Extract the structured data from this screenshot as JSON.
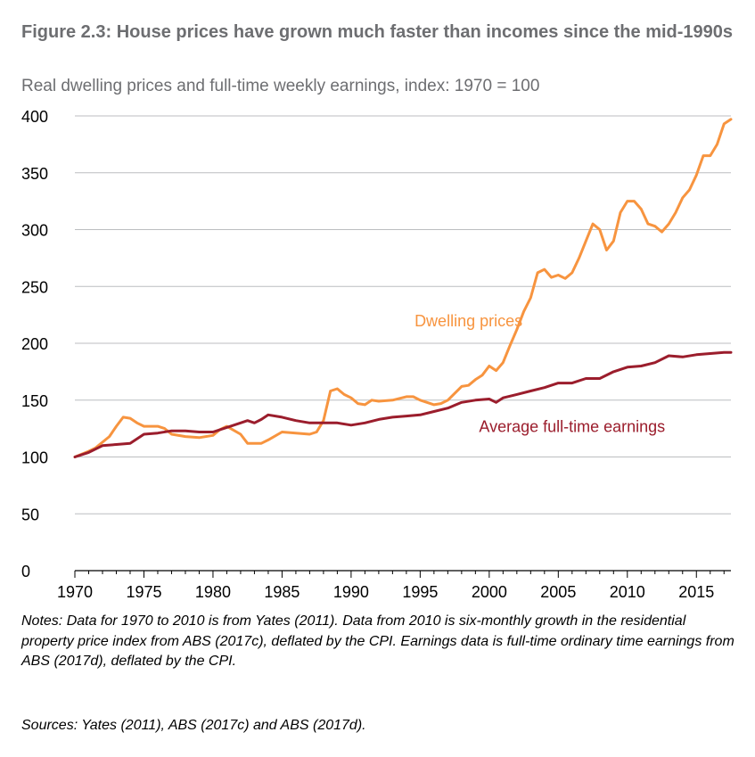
{
  "figure": {
    "title": "Figure 2.3: House prices have grown much faster than incomes since the mid-1990s",
    "subtitle": "Real dwelling prices and full-time weekly earnings, index: 1970 = 100",
    "notes": "Notes: Data for 1970 to 2010 is from Yates (2011). Data from 2010 is six-monthly growth in the residential property price index from ABS (2017c), deflated by the CPI. Earnings data is full-time ordinary time earnings from ABS (2017d), deflated by the CPI.",
    "sources": "Sources: Yates (2011), ABS (2017c) and ABS (2017d)."
  },
  "chart_data": {
    "type": "line",
    "title": "Figure 2.3: House prices have grown much faster than incomes since the mid-1990s",
    "subtitle": "Real dwelling prices and full-time weekly earnings, index: 1970 = 100",
    "xlabel": "",
    "ylabel": "",
    "xlim": [
      1970,
      2017.5
    ],
    "ylim": [
      0,
      400
    ],
    "x_ticks": [
      1970,
      1975,
      1980,
      1985,
      1990,
      1995,
      2000,
      2005,
      2010,
      2015
    ],
    "y_ticks": [
      0,
      50,
      100,
      150,
      200,
      250,
      300,
      350,
      400
    ],
    "grid": "horizontal",
    "legend": "none",
    "series": [
      {
        "name": "Dwelling prices",
        "color": "#f7943f",
        "points": [
          [
            1970,
            100
          ],
          [
            1971,
            105
          ],
          [
            1971.5,
            108
          ],
          [
            1972,
            113
          ],
          [
            1972.5,
            118
          ],
          [
            1973,
            127
          ],
          [
            1973.5,
            135
          ],
          [
            1974,
            134
          ],
          [
            1974.5,
            130
          ],
          [
            1975,
            127
          ],
          [
            1976,
            127
          ],
          [
            1976.5,
            125
          ],
          [
            1977,
            120
          ],
          [
            1978,
            118
          ],
          [
            1979,
            117
          ],
          [
            1980,
            119
          ],
          [
            1980.5,
            124
          ],
          [
            1981,
            127
          ],
          [
            1982,
            120
          ],
          [
            1982.5,
            112
          ],
          [
            1983.5,
            112
          ],
          [
            1984,
            115
          ],
          [
            1985,
            122
          ],
          [
            1986,
            121
          ],
          [
            1987,
            120
          ],
          [
            1987.5,
            122
          ],
          [
            1988,
            132
          ],
          [
            1988.5,
            158
          ],
          [
            1989,
            160
          ],
          [
            1989.5,
            155
          ],
          [
            1990,
            152
          ],
          [
            1990.5,
            147
          ],
          [
            1991,
            146
          ],
          [
            1991.5,
            150
          ],
          [
            1992,
            149
          ],
          [
            1993,
            150
          ],
          [
            1994,
            153
          ],
          [
            1994.5,
            153
          ],
          [
            1995,
            150
          ],
          [
            1996,
            146
          ],
          [
            1996.5,
            147
          ],
          [
            1997,
            150
          ],
          [
            1998,
            162
          ],
          [
            1998.5,
            163
          ],
          [
            1999,
            168
          ],
          [
            1999.5,
            172
          ],
          [
            2000,
            180
          ],
          [
            2000.5,
            176
          ],
          [
            2001,
            183
          ],
          [
            2001.5,
            198
          ],
          [
            2002,
            212
          ],
          [
            2002.5,
            228
          ],
          [
            2003,
            240
          ],
          [
            2003.5,
            262
          ],
          [
            2004,
            265
          ],
          [
            2004.5,
            258
          ],
          [
            2005,
            260
          ],
          [
            2005.5,
            257
          ],
          [
            2006,
            262
          ],
          [
            2006.5,
            275
          ],
          [
            2007,
            290
          ],
          [
            2007.5,
            305
          ],
          [
            2008,
            300
          ],
          [
            2008.5,
            282
          ],
          [
            2009,
            290
          ],
          [
            2009.5,
            315
          ],
          [
            2010,
            325
          ],
          [
            2010.5,
            325
          ],
          [
            2011,
            318
          ],
          [
            2011.5,
            305
          ],
          [
            2012,
            303
          ],
          [
            2012.5,
            298
          ],
          [
            2013,
            305
          ],
          [
            2013.5,
            315
          ],
          [
            2014,
            328
          ],
          [
            2014.5,
            335
          ],
          [
            2015,
            348
          ],
          [
            2015.5,
            365
          ],
          [
            2016,
            365
          ],
          [
            2016.5,
            375
          ],
          [
            2017,
            393
          ],
          [
            2017.5,
            397
          ]
        ]
      },
      {
        "name": "Average full-time earnings",
        "color": "#9b1d2c",
        "points": [
          [
            1970,
            100
          ],
          [
            1971,
            104
          ],
          [
            1972,
            110
          ],
          [
            1973,
            111
          ],
          [
            1974,
            112
          ],
          [
            1975,
            120
          ],
          [
            1976,
            121
          ],
          [
            1977,
            123
          ],
          [
            1978,
            123
          ],
          [
            1979,
            122
          ],
          [
            1980,
            122
          ],
          [
            1981,
            126
          ],
          [
            1982,
            130
          ],
          [
            1982.5,
            132
          ],
          [
            1983,
            130
          ],
          [
            1983.5,
            133
          ],
          [
            1984,
            137
          ],
          [
            1985,
            135
          ],
          [
            1986,
            132
          ],
          [
            1987,
            130
          ],
          [
            1988,
            130
          ],
          [
            1989,
            130
          ],
          [
            1990,
            128
          ],
          [
            1991,
            130
          ],
          [
            1992,
            133
          ],
          [
            1993,
            135
          ],
          [
            1994,
            136
          ],
          [
            1995,
            137
          ],
          [
            1996,
            140
          ],
          [
            1997,
            143
          ],
          [
            1998,
            148
          ],
          [
            1999,
            150
          ],
          [
            2000,
            151
          ],
          [
            2000.5,
            148
          ],
          [
            2001,
            152
          ],
          [
            2002,
            155
          ],
          [
            2003,
            158
          ],
          [
            2004,
            161
          ],
          [
            2005,
            165
          ],
          [
            2006,
            165
          ],
          [
            2007,
            169
          ],
          [
            2008,
            169
          ],
          [
            2009,
            175
          ],
          [
            2010,
            179
          ],
          [
            2011,
            180
          ],
          [
            2012,
            183
          ],
          [
            2013,
            189
          ],
          [
            2014,
            188
          ],
          [
            2015,
            190
          ],
          [
            2016,
            191
          ],
          [
            2017,
            192
          ],
          [
            2017.5,
            192
          ]
        ]
      }
    ],
    "annotations": [
      {
        "text": "Dwelling prices",
        "x": 1998.5,
        "y": 215,
        "color": "#f7943f"
      },
      {
        "text": "Average full-time earnings",
        "x": 2006,
        "y": 122,
        "color": "#9b1d2c"
      }
    ]
  }
}
